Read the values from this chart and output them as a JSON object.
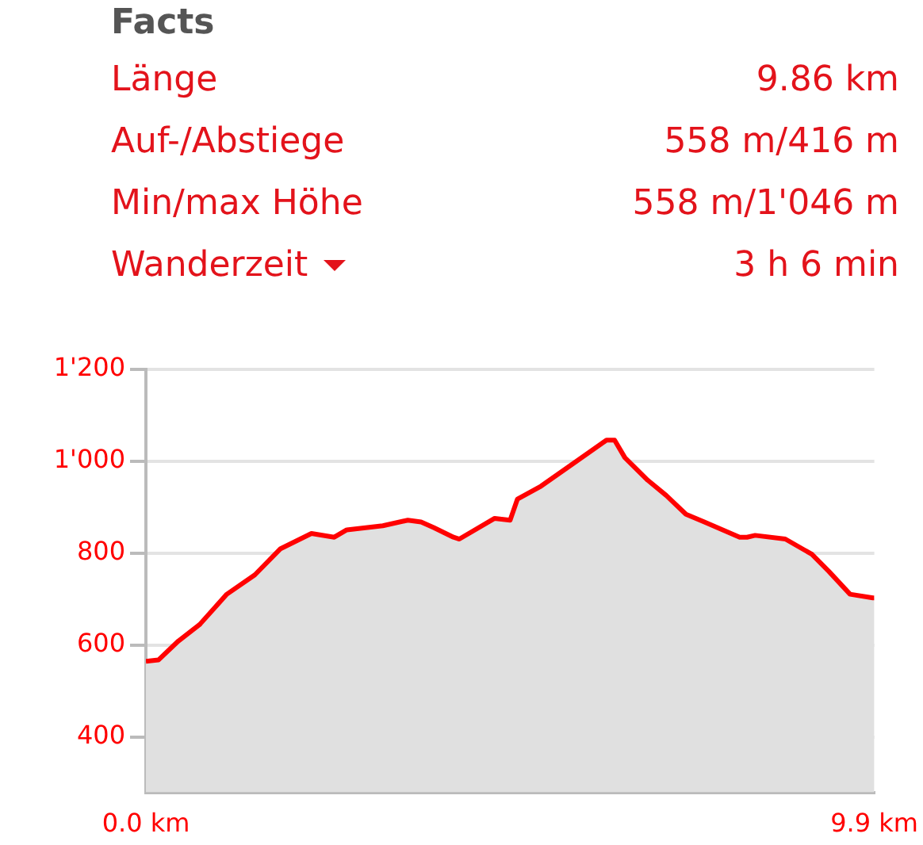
{
  "chart_data": [
    {
      "type": "other",
      "title": "Facts",
      "annotations": [
        "Länge",
        "9.86 km",
        "Auf-/Abstiege",
        "558 m/416 m",
        "Min/max Höhe",
        "558 m/1'046 m",
        "Wanderzeit",
        "3 h 6 min"
      ]
    },
    {
      "type": "area",
      "x": [
        0,
        0.17,
        0.44,
        0.73,
        1.1,
        1.48,
        1.83,
        2.25,
        2.56,
        2.73,
        3.22,
        3.56,
        3.74,
        3.91,
        4.18,
        4.26,
        4.74,
        4.95,
        5.05,
        5.37,
        5.85,
        6.26,
        6.37,
        6.51,
        6.82,
        7.07,
        7.34,
        7.59,
        8.07,
        8.17,
        8.28,
        8.69,
        9.05,
        9.28,
        9.57,
        9.88,
        9.9
      ],
      "series": [
        {
          "color": "#ff0000",
          "values": [
            565,
            568,
            609,
            645,
            711,
            753,
            810,
            843,
            835,
            851,
            860,
            872,
            868,
            856,
            835,
            831,
            876,
            872,
            918,
            946,
            1000,
            1046,
            1046,
            1008,
            959,
            926,
            885,
            868,
            835,
            835,
            839,
            831,
            798,
            761,
            711,
            703,
            703
          ]
        }
      ],
      "xlim": [
        0,
        9.9
      ],
      "xticks": [
        {
          "value": 0,
          "label": "0.0 km"
        },
        {
          "value": 9.9,
          "label": "9.9 km"
        }
      ],
      "ylim": [
        280,
        1200
      ],
      "yticks": [
        400,
        600,
        800,
        {
          "value": 1000,
          "label": "1'000"
        },
        {
          "value": 1200,
          "label": "1'200"
        }
      ],
      "grid": "y",
      "legend": false,
      "marker": "none"
    }
  ]
}
